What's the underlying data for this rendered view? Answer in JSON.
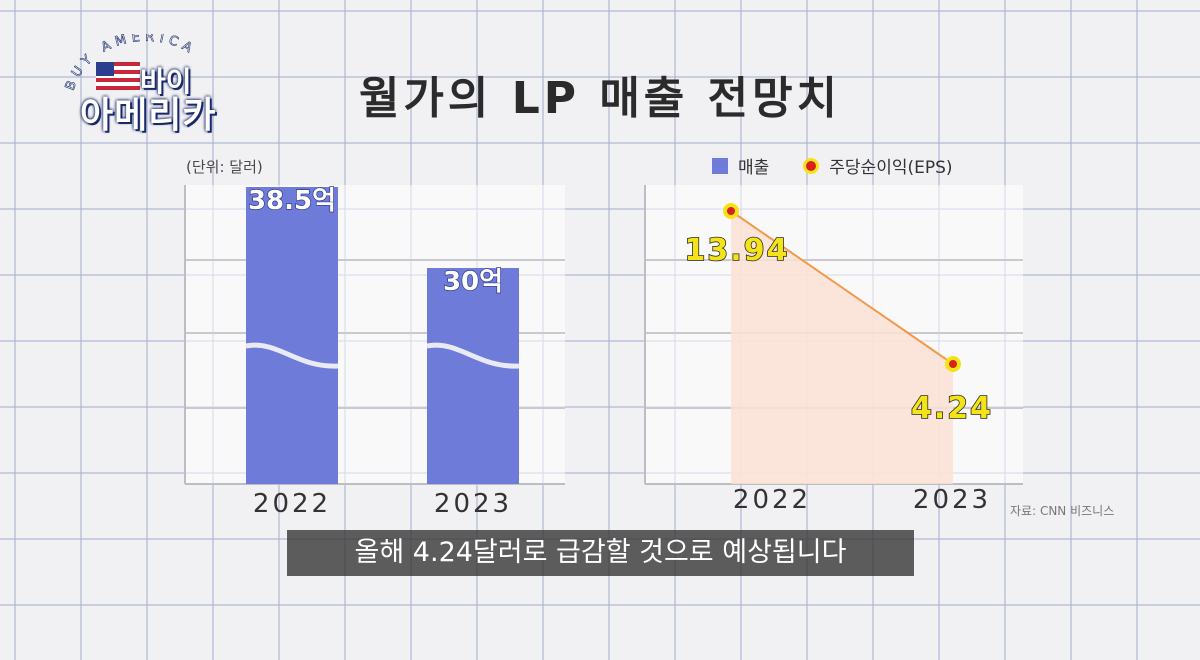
{
  "logo": {
    "arc_text": "BUY AMERICA",
    "line1": "바이",
    "line2": "아메리카"
  },
  "title": "월가의 LP 매출 전망치",
  "unit_label": "(단위: 달러)",
  "legend": {
    "revenue": "매출",
    "eps": "주당순이익(EPS)"
  },
  "source": "자료: CNN 비즈니스",
  "caption": "올해 4.24달러로 급감할 것으로 예상됩니다",
  "colors": {
    "bar": "#6f7bd8",
    "eps_line": "#f29a4a",
    "eps_area": "#fbe2d4",
    "point": "#d9221c",
    "point_ring": "#f4e317"
  },
  "chart_data": [
    {
      "type": "bar",
      "categories": [
        "2022",
        "2023"
      ],
      "values": [
        38.5,
        30
      ],
      "data_labels": [
        "38.5억",
        "30억"
      ],
      "unit": "(단위: 달러)",
      "axis_break": true,
      "legend": "매출"
    },
    {
      "type": "area",
      "categories": [
        "2022",
        "2023"
      ],
      "values": [
        13.94,
        4.24
      ],
      "data_labels": [
        "13.94",
        "4.24"
      ],
      "legend": "주당순이익(EPS)"
    }
  ]
}
